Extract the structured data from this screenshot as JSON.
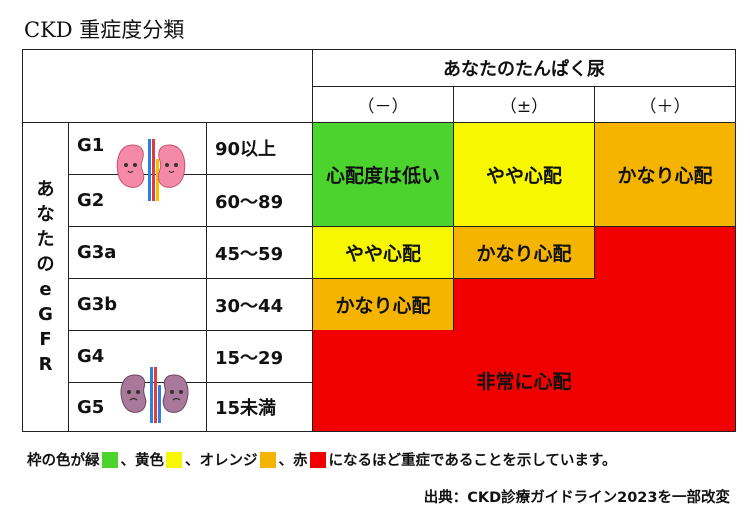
{
  "title": "CKD 重症度分類",
  "header": {
    "protein": "あなたのたんぱく尿",
    "negative": "（－）",
    "trace": "（±）",
    "positive": "（＋）",
    "egfr_chars": [
      "あ",
      "な",
      "た",
      "の",
      "e",
      "G",
      "F",
      "R"
    ]
  },
  "grades": [
    {
      "stage": "G1",
      "range": "90以上"
    },
    {
      "stage": "G2",
      "range": "60～89"
    },
    {
      "stage": "G3a",
      "range": "45～59"
    },
    {
      "stage": "G3b",
      "range": "30～44"
    },
    {
      "stage": "G4",
      "range": "15～29"
    },
    {
      "stage": "G5",
      "range": "15未満"
    }
  ],
  "risk": {
    "low": "心配度は低い",
    "mild": "やや心配",
    "moderate": "かなり心配",
    "severe": "非常に心配"
  },
  "colors": {
    "green": "#4cd32e",
    "yellow": "#f7f700",
    "orange": "#f5b400",
    "red": "#f20000"
  },
  "legend": {
    "prefix": "枠の色が緑",
    "sep1": "、黄色",
    "sep2": "、オレンジ",
    "sep3": "、赤",
    "suffix": "になるほど重症であることを示しています。"
  },
  "source": "出典：CKD診療ガイドライン2023を一部改変",
  "icons": {
    "healthy": "healthy-kidney-icon",
    "sick": "sick-kidney-icon"
  }
}
